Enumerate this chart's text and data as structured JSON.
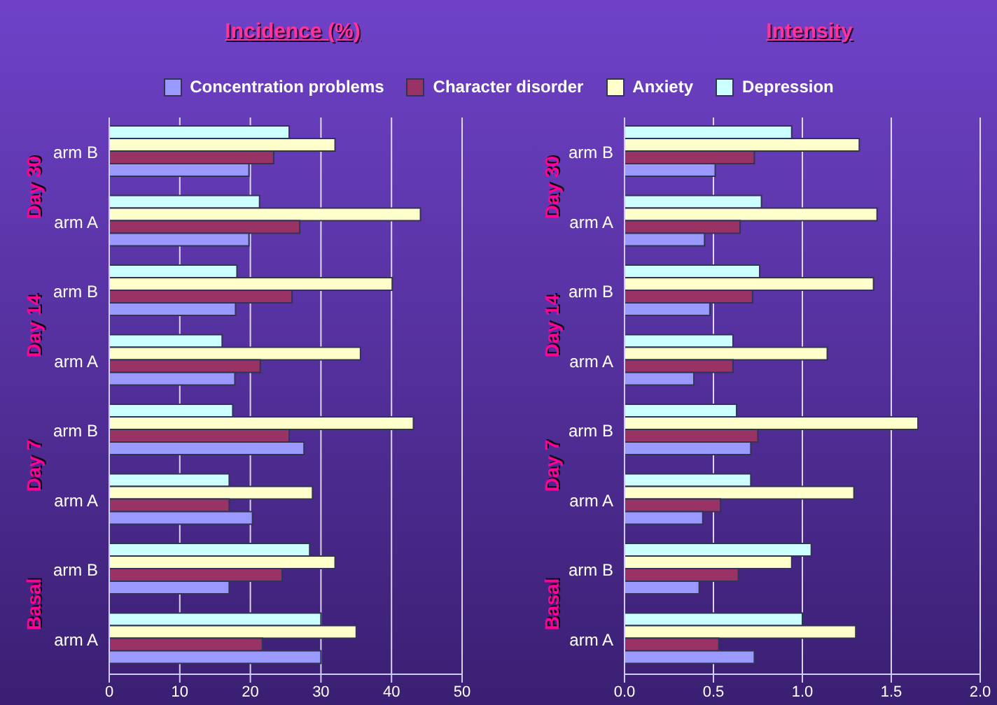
{
  "chart_data": [
    {
      "type": "bar",
      "orientation": "horizontal",
      "title": "Incidence (%)",
      "categories": [
        "arm B",
        "arm A",
        "arm B",
        "arm A",
        "arm B",
        "arm A",
        "arm B",
        "arm A"
      ],
      "annotations": [
        "Day 30",
        "Day 14",
        "Day 7",
        "Basal"
      ],
      "series": [
        {
          "name": "Depression",
          "color": "#ccffff",
          "values": [
            25.5,
            21.3,
            18.1,
            16,
            17.5,
            17,
            28.4,
            30
          ]
        },
        {
          "name": "Anxiety",
          "color": "#ffffcc",
          "values": [
            32,
            44.1,
            40.1,
            35.6,
            43.1,
            28.8,
            32,
            35
          ]
        },
        {
          "name": "Character disorder",
          "color": "#993366",
          "values": [
            23.3,
            27,
            25.9,
            21.4,
            25.5,
            17,
            24.5,
            21.7
          ]
        },
        {
          "name": "Concentration problems",
          "color": "#9999ff",
          "values": [
            19.8,
            19.8,
            17.9,
            17.8,
            27.6,
            20.3,
            17,
            30
          ]
        }
      ],
      "xlim": [
        0,
        50
      ],
      "xticks": [
        0,
        10,
        20,
        30,
        40,
        50
      ],
      "grid": "x",
      "legend": "top"
    },
    {
      "type": "bar",
      "orientation": "horizontal",
      "title": "Intensity",
      "categories": [
        "arm B",
        "arm A",
        "arm B",
        "arm A",
        "arm B",
        "arm A",
        "arm B",
        "arm A"
      ],
      "annotations": [
        "Day 30",
        "Day 14",
        "Day 7",
        "Basal"
      ],
      "series": [
        {
          "color": "#ccffff",
          "values": [
            0.94,
            0.77,
            0.76,
            0.61,
            0.63,
            0.71,
            1.05,
            1.0
          ]
        },
        {
          "color": "#ffffcc",
          "values": [
            1.32,
            1.42,
            1.4,
            1.14,
            1.65,
            1.29,
            0.94,
            1.3
          ]
        },
        {
          "color": "#993366",
          "values": [
            0.73,
            0.65,
            0.72,
            0.61,
            0.75,
            0.54,
            0.64,
            0.53
          ]
        },
        {
          "color": "#9999ff",
          "values": [
            0.51,
            0.45,
            0.48,
            0.39,
            0.71,
            0.44,
            0.42,
            0.73
          ]
        }
      ],
      "xlim": [
        0,
        2
      ],
      "xticks": [
        {
          "value": 0,
          "label": "0.0"
        },
        {
          "value": 0.5,
          "label": "0.5"
        },
        {
          "value": 1,
          "label": "1.0"
        },
        {
          "value": 1.5,
          "label": "1.5"
        },
        {
          "value": 2,
          "label": "2.0"
        }
      ],
      "grid": "x"
    }
  ]
}
